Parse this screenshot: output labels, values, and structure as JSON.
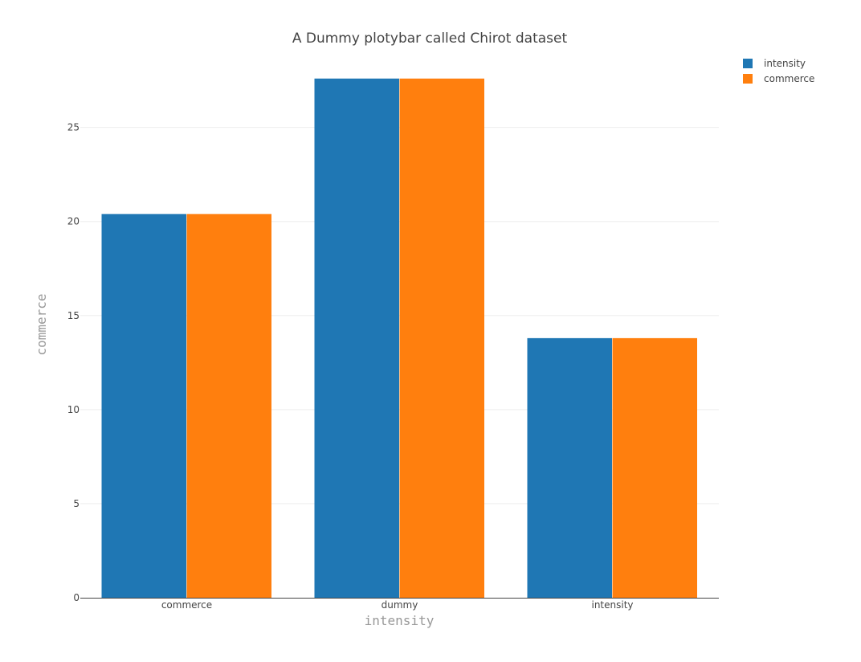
{
  "chart_data": {
    "type": "bar",
    "title": "A Dummy plotybar called Chirot dataset",
    "xlabel": "intensity",
    "ylabel": "commerce",
    "categories": [
      "commerce",
      "dummy",
      "intensity"
    ],
    "series": [
      {
        "name": "intensity",
        "values": [
          20.4,
          27.6,
          13.8
        ],
        "color": "#1f77b4"
      },
      {
        "name": "commerce",
        "values": [
          20.4,
          27.6,
          13.8
        ],
        "color": "#ff7f0e"
      }
    ],
    "ylim": [
      0,
      29
    ],
    "yticks": [
      0,
      5,
      10,
      15,
      20,
      25
    ],
    "grid": true,
    "legend_position": "top-right"
  }
}
